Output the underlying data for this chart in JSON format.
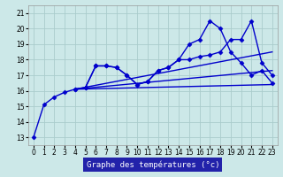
{
  "xlabel": "Graphe des températures (°c)",
  "bg_color": "#cce8e8",
  "grid_color": "#aacccc",
  "line_color": "#0000cc",
  "xlabel_bg": "#2222aa",
  "x_ticks": [
    0,
    1,
    2,
    3,
    4,
    5,
    6,
    7,
    8,
    9,
    10,
    11,
    12,
    13,
    14,
    15,
    16,
    17,
    18,
    19,
    20,
    21,
    22,
    23
  ],
  "y_ticks": [
    13,
    14,
    15,
    16,
    17,
    18,
    19,
    20,
    21
  ],
  "ylim": [
    12.5,
    21.5
  ],
  "xlim": [
    -0.5,
    23.5
  ],
  "series": [
    {
      "x": [
        0,
        1,
        2,
        3,
        4,
        5,
        6,
        7,
        8,
        9,
        10,
        11,
        12,
        13,
        14,
        15,
        16,
        17,
        18,
        19,
        20,
        21,
        22,
        23
      ],
      "y": [
        13.0,
        15.1,
        15.6,
        15.9,
        16.1,
        16.2,
        17.6,
        17.6,
        17.5,
        17.0,
        16.4,
        16.6,
        17.3,
        17.5,
        18.0,
        18.0,
        18.2,
        18.3,
        18.5,
        19.3,
        19.3,
        20.5,
        17.8,
        17.0
      ],
      "marker": "D",
      "markersize": 2.5,
      "linewidth": 1.0
    },
    {
      "x": [
        4,
        23
      ],
      "y": [
        16.1,
        16.4
      ],
      "marker": null,
      "markersize": 0,
      "linewidth": 1.0
    },
    {
      "x": [
        4,
        23
      ],
      "y": [
        16.1,
        17.3
      ],
      "marker": null,
      "markersize": 0,
      "linewidth": 1.0
    },
    {
      "x": [
        4,
        23
      ],
      "y": [
        16.1,
        18.5
      ],
      "marker": null,
      "markersize": 0,
      "linewidth": 1.0
    },
    {
      "x": [
        4,
        5,
        6,
        7,
        8,
        9,
        10,
        11,
        12,
        13,
        14,
        15,
        16,
        17,
        18,
        19,
        20,
        21,
        22,
        23
      ],
      "y": [
        16.1,
        16.2,
        17.6,
        17.6,
        17.5,
        17.0,
        16.4,
        16.6,
        17.3,
        17.5,
        18.0,
        19.0,
        19.3,
        20.5,
        20.0,
        18.5,
        17.8,
        17.0,
        17.3,
        16.5
      ],
      "marker": "D",
      "markersize": 2.5,
      "linewidth": 1.0
    }
  ]
}
